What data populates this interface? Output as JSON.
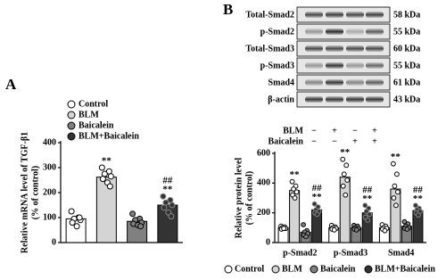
{
  "chart_data": [
    {
      "type": "bar",
      "panel": "A",
      "ylabel": [
        "Relative mRNA level of TGF-β1",
        "(% of control)"
      ],
      "categories": [
        "Control",
        "BLM",
        "Baicalein",
        "BLM+Baicalein"
      ],
      "values": [
        95,
        262,
        85,
        150
      ],
      "colors": [
        "#ffffff",
        "#d4d4d4",
        "#808080",
        "#333333"
      ],
      "points": [
        [
          125,
          100,
          95,
          90,
          80,
          65,
          100
        ],
        [
          300,
          285,
          275,
          265,
          255,
          240,
          225
        ],
        [
          115,
          95,
          90,
          80,
          75,
          70,
          65
        ],
        [
          185,
          170,
          160,
          150,
          140,
          120,
          105
        ]
      ],
      "ylim": [
        0,
        400
      ],
      "yticks": [
        0,
        100,
        200,
        300,
        400
      ],
      "legend": "top-left",
      "annotations": [
        {
          "category": "BLM",
          "texts": [
            "**"
          ]
        },
        {
          "category": "BLM+Baicalein",
          "texts": [
            "##",
            "**"
          ]
        }
      ]
    },
    {
      "type": "grouped_bar",
      "panel": "B",
      "ylabel": [
        "Relative protein level",
        "(% of control)"
      ],
      "categories": [
        "p-Smad2",
        "p-Smad3",
        "Smad4"
      ],
      "series": [
        {
          "name": "Control",
          "color": "#ffffff",
          "values": [
            100,
            100,
            100
          ],
          "points": [
            [
              110,
              105,
              100,
              95,
              90,
              95
            ],
            [
              115,
              105,
              100,
              95,
              90,
              85
            ],
            [
              120,
              110,
              100,
              95,
              90,
              80
            ]
          ]
        },
        {
          "name": "BLM",
          "color": "#d4d4d4",
          "values": [
            350,
            440,
            360
          ],
          "points": [
            [
              410,
              380,
              360,
              340,
              320,
              300
            ],
            [
              560,
              520,
              460,
              420,
              380,
              320
            ],
            [
              530,
              460,
              380,
              340,
              300,
              250
            ]
          ]
        },
        {
          "name": "Baicalein",
          "color": "#808080",
          "values": [
            70,
            100,
            110
          ],
          "points": [
            [
              120,
              80,
              70,
              60,
              50,
              40
            ],
            [
              115,
              110,
              100,
              95,
              90,
              85
            ],
            [
              140,
              125,
              110,
              100,
              95,
              90
            ]
          ]
        },
        {
          "name": "BLM+Baicalein",
          "color": "#333333",
          "values": [
            220,
            200,
            215
          ],
          "points": [
            [
              260,
              240,
              220,
              210,
              200,
              190
            ],
            [
              250,
              230,
              210,
              190,
              170,
              150
            ],
            [
              250,
              230,
              220,
              210,
              200,
              185
            ]
          ]
        }
      ],
      "ylim": [
        0,
        600
      ],
      "yticks": [
        0,
        200,
        400,
        600
      ],
      "legend": "bottom",
      "annotations": [
        {
          "category": "p-Smad2",
          "series": "BLM",
          "texts": [
            "**"
          ]
        },
        {
          "category": "p-Smad2",
          "series": "BLM+Baicalein",
          "texts": [
            "##",
            "**"
          ]
        },
        {
          "category": "p-Smad3",
          "series": "BLM",
          "texts": [
            "**"
          ]
        },
        {
          "category": "p-Smad3",
          "series": "BLM+Baicalein",
          "texts": [
            "##",
            "**"
          ]
        },
        {
          "category": "Smad4",
          "series": "BLM",
          "texts": [
            "**"
          ]
        },
        {
          "category": "Smad4",
          "series": "BLM+Baicalein",
          "texts": [
            "##",
            "**"
          ]
        }
      ]
    }
  ],
  "blot": {
    "rows": [
      {
        "label": "Total-Smad2",
        "size": "58 kDa"
      },
      {
        "label": "p-Smad2",
        "size": "55 kDa"
      },
      {
        "label": "Total-Smad3",
        "size": "60 kDa"
      },
      {
        "label": "p-Smad3",
        "size": "55 kDa"
      },
      {
        "label": "Smad4",
        "size": "61 kDa"
      },
      {
        "label": "β-actin",
        "size": "43 kDa"
      }
    ],
    "treatments": [
      {
        "label": "BLM",
        "signs": [
          "−",
          "+",
          "−",
          "+"
        ]
      },
      {
        "label": "Baicalein",
        "signs": [
          "−",
          "−",
          "+",
          "+"
        ]
      }
    ]
  }
}
